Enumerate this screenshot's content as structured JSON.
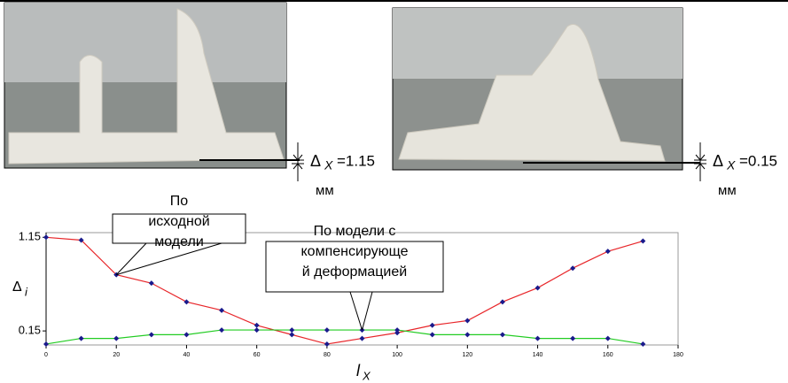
{
  "photo_labels": [
    {
      "delta": "Δ",
      "sub": "X",
      "value": "=1.15",
      "unit": "мм"
    },
    {
      "delta": "Δ",
      "sub": "X",
      "value": "=0.15",
      "unit": "мм"
    }
  ],
  "chart_data": {
    "type": "line",
    "y_label": {
      "symbol": "Δ",
      "sub": "i"
    },
    "x_label": {
      "symbol": "l",
      "sub": "X"
    },
    "x": [
      0,
      10,
      20,
      30,
      40,
      50,
      60,
      70,
      80,
      90,
      100,
      110,
      120,
      130,
      140,
      150,
      160,
      170
    ],
    "series": [
      {
        "color": "#e8262a",
        "values": [
          1.15,
          1.12,
          0.75,
          0.66,
          0.46,
          0.37,
          0.21,
          0.11,
          0.01,
          0.07,
          0.13,
          0.21,
          0.26,
          0.46,
          0.61,
          0.82,
          1.0,
          1.11
        ]
      },
      {
        "color": "#22cc22",
        "values": [
          0.01,
          0.07,
          0.07,
          0.11,
          0.11,
          0.16,
          0.16,
          0.16,
          0.16,
          0.16,
          0.16,
          0.11,
          0.11,
          0.11,
          0.07,
          0.07,
          0.07,
          0.01
        ]
      }
    ],
    "marker_color": "#1a1a8c",
    "xlim": [
      0,
      180
    ],
    "xticks": [
      0,
      20,
      40,
      60,
      80,
      100,
      120,
      140,
      160,
      180
    ],
    "ylim": [
      0,
      1.2
    ],
    "yticks": [
      0.15,
      1.15
    ],
    "annotations": [
      {
        "lines": [
          "По",
          "исходной",
          "модели"
        ],
        "x": 20,
        "y": 0.75
      },
      {
        "lines": [
          "По модели с",
          "компенсирующе",
          "й деформацией"
        ],
        "x": 90,
        "y": 0.16
      }
    ]
  }
}
